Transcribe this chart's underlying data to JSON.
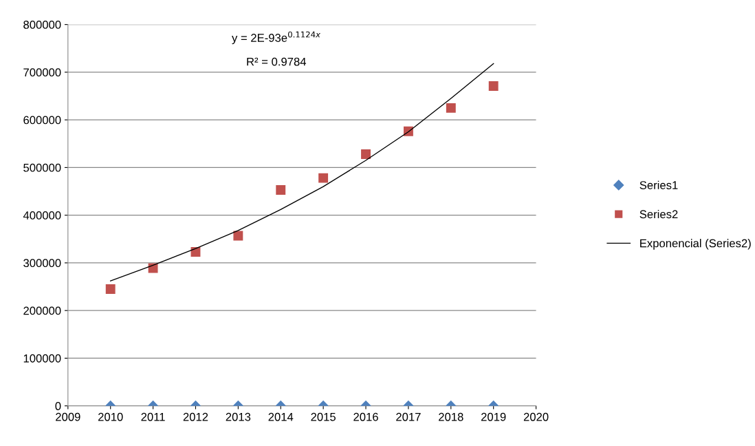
{
  "chart_data": {
    "type": "scatter",
    "x": [
      2010,
      2011,
      2012,
      2013,
      2014,
      2015,
      2016,
      2017,
      2018,
      2019
    ],
    "series": [
      {
        "name": "Series1",
        "color": "#4f81bd",
        "marker": "diamond",
        "values": [
          0,
          0,
          0,
          0,
          0,
          0,
          0,
          0,
          0,
          0
        ]
      },
      {
        "name": "Series2",
        "color": "#c0504d",
        "marker": "square",
        "values": [
          245000,
          289000,
          323000,
          357000,
          453000,
          478000,
          528000,
          576000,
          625000,
          671000
        ]
      },
      {
        "name": "Exponencial (Series2)",
        "type": "line",
        "color": "#000000",
        "marker": "none",
        "line_style": "solid",
        "x": [
          2010,
          2011,
          2012,
          2013,
          2014,
          2015,
          2016,
          2017,
          2018,
          2019
        ],
        "values": [
          262000,
          295000,
          330000,
          368000,
          412000,
          460000,
          515000,
          575000,
          645000,
          718000
        ]
      }
    ],
    "annotations": [
      "y = 2E-93e$^{0.1124x}$",
      "R² = 0.9784"
    ],
    "xlim": [
      2009,
      2020
    ],
    "xticks": [
      2009,
      2010,
      2011,
      2012,
      2013,
      2014,
      2015,
      2016,
      2017,
      2018,
      2019,
      2020
    ],
    "ylim": [
      0,
      800000
    ],
    "yticks": [
      0,
      100000,
      200000,
      300000,
      400000,
      500000,
      600000,
      700000,
      800000
    ],
    "grid": "y",
    "legend": "right"
  }
}
